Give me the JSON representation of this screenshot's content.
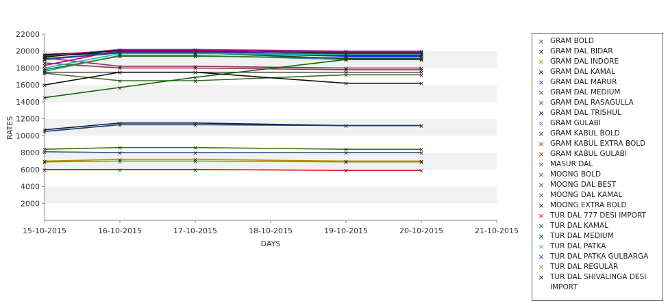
{
  "chart_data": {
    "type": "line",
    "title": "",
    "xlabel": "DAYS",
    "ylabel": "RATES",
    "x_ticks": [
      "15-10-2015",
      "16-10-2015",
      "17-10-2015",
      "18-10-2015",
      "19-10-2015",
      "20-10-2015",
      "21-10-2015"
    ],
    "x": [
      "15-10-2015",
      "16-10-2015",
      "17-10-2015",
      "19-10-2015",
      "20-10-2015"
    ],
    "y_ticks": [
      2000,
      4000,
      6000,
      8000,
      10000,
      12000,
      14000,
      16000,
      18000,
      20000,
      22000
    ],
    "ylim": [
      0,
      22000
    ],
    "grid": "alternating horizontal bands",
    "legend_position": "right",
    "series": [
      {
        "name": "GRAM BOLD",
        "color": "#4a4a4a",
        "values": [
          17500,
          17500,
          17500,
          17500,
          17500
        ]
      },
      {
        "name": "GRAM DAL BIDAR",
        "color": "#1a1a1a",
        "values": [
          19500,
          19800,
          19800,
          19500,
          19500
        ]
      },
      {
        "name": "GRAM DAL INDORE",
        "color": "#c88a00",
        "values": [
          7000,
          7200,
          7200,
          7000,
          7000
        ]
      },
      {
        "name": "GRAM DAL KAMAL",
        "color": "#111111",
        "values": [
          19600,
          20000,
          20000,
          19600,
          19600
        ]
      },
      {
        "name": "GRAM DAL MARUR",
        "color": "#1a1aff",
        "values": [
          19000,
          19800,
          19800,
          19400,
          19400
        ]
      },
      {
        "name": "GRAM DAL MEDIUM",
        "color": "#8a3a3a",
        "values": [
          18600,
          18000,
          18000,
          17800,
          17800
        ]
      },
      {
        "name": "GRAM DAL RASAGULLA",
        "color": "#8a2a6a",
        "values": [
          19200,
          18200,
          18200,
          18000,
          18000
        ]
      },
      {
        "name": "GRAM DAL TRISHUL",
        "color": "#0a1a5a",
        "values": [
          10700,
          11500,
          11500,
          11200,
          11200
        ]
      },
      {
        "name": "GRAM GULABI",
        "color": "#2a8aa0",
        "values": [
          17600,
          19500,
          19500,
          19000,
          19000
        ]
      },
      {
        "name": "GRAM KABUL BOLD",
        "color": "#1a3a6a",
        "values": [
          10500,
          11300,
          11300,
          11200,
          11200
        ]
      },
      {
        "name": "GRAM KABUL EXTRA BOLD",
        "color": "#4a6a0a",
        "values": [
          8400,
          8600,
          8600,
          8400,
          8400
        ]
      },
      {
        "name": "GRAM KABUL GULABI",
        "color": "#e00000",
        "values": [
          6000,
          6000,
          6000,
          5900,
          5900
        ]
      },
      {
        "name": "MASUR DAL",
        "color": "#9a2a9a",
        "values": [
          19400,
          20200,
          20200,
          20000,
          20000
        ]
      },
      {
        "name": "MOONG BOLD",
        "color": "#2a5a8a",
        "values": [
          8100,
          8000,
          8000,
          8000,
          8000
        ]
      },
      {
        "name": "MOONG DAL BEST",
        "color": "#3a6a1a",
        "values": [
          17400,
          16500,
          16500,
          17200,
          17200
        ]
      },
      {
        "name": "MOONG DAL KAMAL",
        "color": "#2a7a2a",
        "values": [
          17800,
          19400,
          19400,
          19200,
          19200
        ]
      },
      {
        "name": "MOONG EXTRA BOLD",
        "color": "#111111",
        "values": [
          19300,
          20100,
          20100,
          19800,
          19800
        ]
      },
      {
        "name": "TUR DAL 777 DESI IMPORT",
        "color": "#c00080",
        "values": [
          18300,
          20100,
          20100,
          19900,
          19900
        ]
      },
      {
        "name": "TUR DAL KAMAL",
        "color": "#0a6a0a",
        "values": [
          14500,
          15700,
          16900,
          19000,
          19000
        ]
      },
      {
        "name": "TUR DAL MEDIUM",
        "color": "#1a4a2a",
        "values": [
          19100,
          19800,
          19800,
          19100,
          19100
        ]
      },
      {
        "name": "TUR DAL PATKA",
        "color": "#1ac8a0",
        "values": [
          18000,
          19700,
          19700,
          19600,
          19600
        ]
      },
      {
        "name": "TUR DAL PATKA GULBARGA",
        "color": "#3a3aa0",
        "values": [
          19000,
          19900,
          19900,
          19700,
          19700
        ]
      },
      {
        "name": "TUR DAL REGULAR",
        "color": "#7a9a2a",
        "values": [
          6900,
          7000,
          7000,
          6900,
          6900
        ]
      },
      {
        "name": "TUR DAL SHIVALINGA DESI IMPORT",
        "color": "#111111",
        "values": [
          16000,
          17500,
          17500,
          16200,
          16200
        ]
      }
    ]
  }
}
